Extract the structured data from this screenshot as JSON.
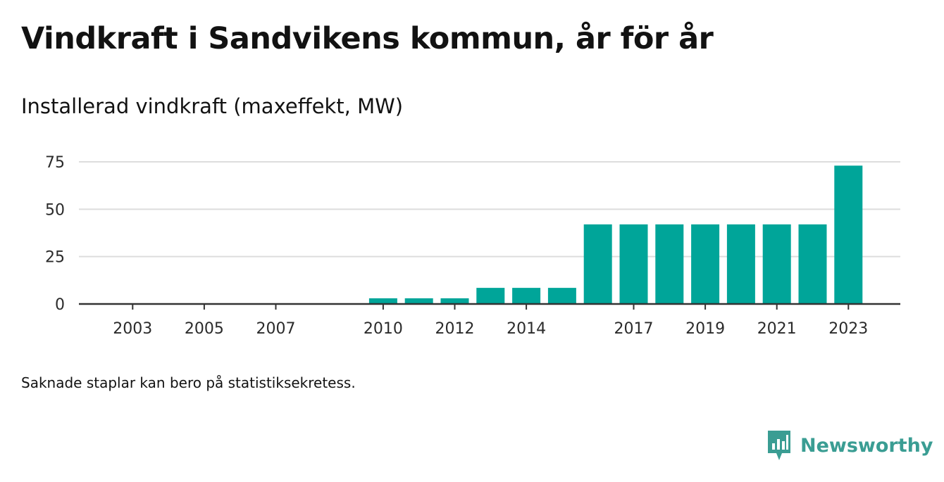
{
  "title": "Vindkraft i Sandvikens kommun, år för år",
  "subtitle": "Installerad vindkraft (maxeffekt, MW)",
  "note": "Saknade staplar kan bero på statistiksekretess.",
  "brand": {
    "name": "Newsworthy",
    "icon": "newsworthy-bar-chart-icon",
    "color": "#3a9d93"
  },
  "chart_data": {
    "type": "bar",
    "title": "Installerad vindkraft (maxeffekt, MW)",
    "xlabel": "",
    "ylabel": "",
    "categories": [
      "2002",
      "2003",
      "2004",
      "2005",
      "2006",
      "2007",
      "2008",
      "2009",
      "2010",
      "2011",
      "2012",
      "2013",
      "2014",
      "2015",
      "2016",
      "2017",
      "2018",
      "2019",
      "2020",
      "2021",
      "2022",
      "2023"
    ],
    "values": [
      0,
      0,
      0,
      0,
      0,
      0,
      null,
      null,
      3,
      3,
      3,
      8.5,
      8.5,
      8.5,
      42,
      42,
      42,
      42,
      42,
      42,
      42,
      73
    ],
    "x_tick_labels": [
      "2003",
      "2005",
      "2007",
      "2010",
      "2012",
      "2014",
      "2017",
      "2019",
      "2021",
      "2023"
    ],
    "y_ticks": [
      0,
      25,
      50,
      75
    ],
    "ylim": [
      0,
      75
    ],
    "grid": true,
    "bar_color": "#00a599",
    "legend": "none"
  }
}
